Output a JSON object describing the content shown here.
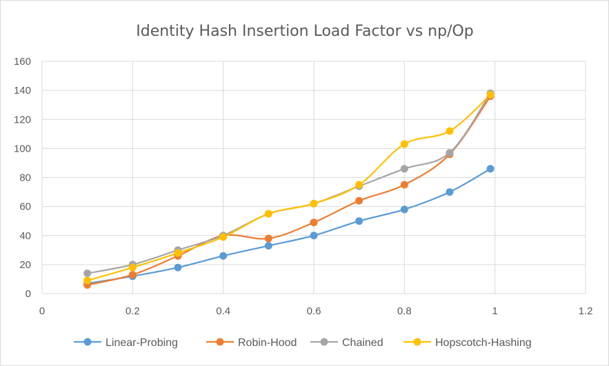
{
  "chart_data": {
    "type": "scatter",
    "title": "Identity Hash Insertion Load Factor vs np/Op",
    "xlabel": "",
    "ylabel": "",
    "xlim": [
      0,
      1.2
    ],
    "ylim": [
      0,
      160
    ],
    "x_ticks": [
      0,
      0.2,
      0.4,
      0.6,
      0.8,
      1,
      1.2
    ],
    "x_tick_labels": [
      "0",
      "0.2",
      "0.4",
      "0.6",
      "0.8",
      "1",
      "1.2"
    ],
    "y_ticks": [
      0,
      20,
      40,
      60,
      80,
      100,
      120,
      140,
      160
    ],
    "y_tick_labels": [
      "0",
      "20",
      "40",
      "60",
      "80",
      "100",
      "120",
      "140",
      "160"
    ],
    "grid": true,
    "smooth_lines": true,
    "legend_position": "bottom",
    "x": [
      0.1,
      0.2,
      0.3,
      0.4,
      0.5,
      0.6,
      0.7,
      0.8,
      0.9,
      0.99
    ],
    "series": [
      {
        "name": "Linear-Probing",
        "color": "#5b9bd5",
        "values": [
          7,
          12,
          18,
          26,
          33,
          40,
          50,
          58,
          70,
          86
        ]
      },
      {
        "name": "Robin-Hood",
        "color": "#ed7d31",
        "values": [
          6,
          13,
          26,
          40,
          38,
          49,
          64,
          75,
          96,
          136
        ]
      },
      {
        "name": "Chained",
        "color": "#a5a5a5",
        "values": [
          14,
          20,
          30,
          40,
          55,
          62,
          74,
          86,
          97,
          138
        ]
      },
      {
        "name": "Hopscotch-Hashing",
        "color": "#ffc000",
        "values": [
          9,
          18,
          28,
          39,
          55,
          62,
          75,
          103,
          112,
          137
        ]
      }
    ]
  }
}
